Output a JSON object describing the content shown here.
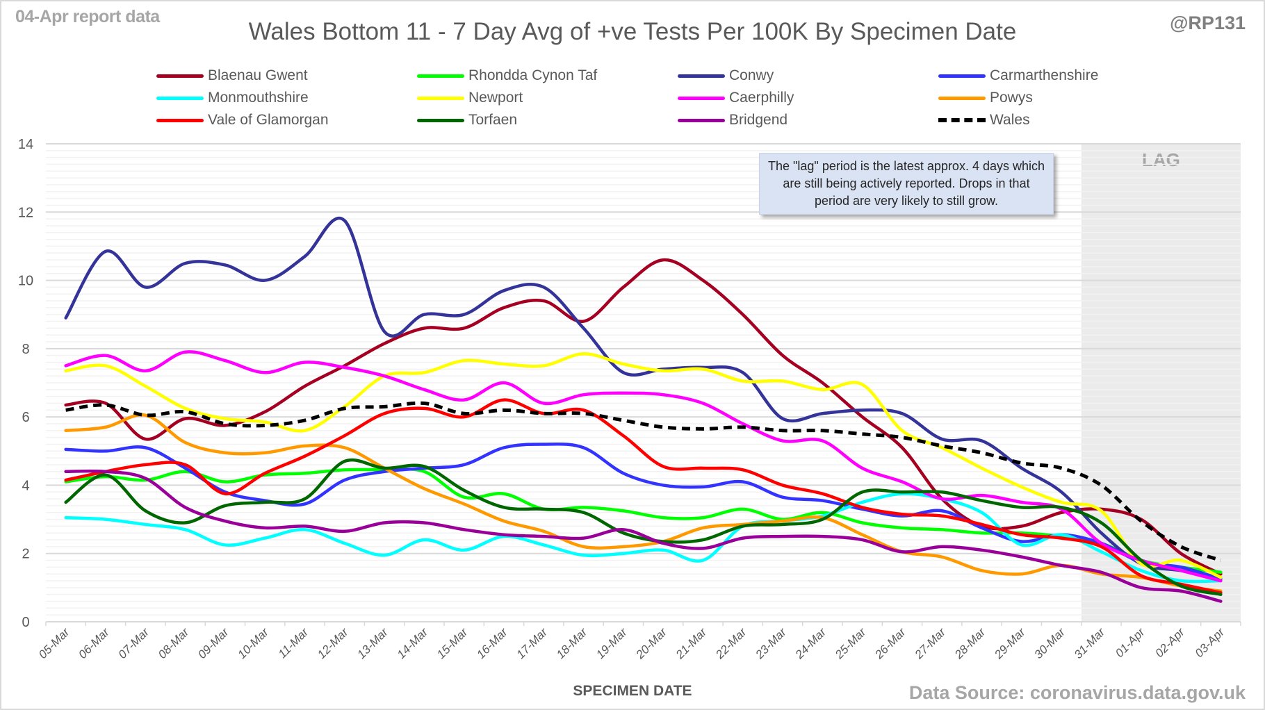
{
  "header": {
    "report_label": "04-Apr report data",
    "title": "Wales Bottom 11 - 7 Day Avg of +ve Tests Per 100K By Specimen Date",
    "handle": "@RP131"
  },
  "footer": {
    "x_axis_label": "SPECIMEN DATE",
    "data_source": "Data Source: coronavirus.data.gov.uk"
  },
  "annotation": {
    "note": "The \"lag\" period is the latest approx. 4 days which are still being actively reported. Drops in that period are very likely to still grow.",
    "lag_label": "LAG",
    "lag_start": "31-Mar",
    "lag_end": "03-Apr"
  },
  "chart_data": {
    "type": "line",
    "title": "Wales Bottom 11 - 7 Day Avg of +ve Tests Per 100K By Specimen Date",
    "xlabel": "SPECIMEN DATE",
    "ylabel": "",
    "ylim": [
      0,
      14
    ],
    "yticks": [
      0,
      2,
      4,
      6,
      8,
      10,
      12,
      14
    ],
    "grid": true,
    "minor_grid_step": 0.2,
    "legend_position": "top",
    "x": [
      "05-Mar",
      "06-Mar",
      "07-Mar",
      "08-Mar",
      "09-Mar",
      "10-Mar",
      "11-Mar",
      "12-Mar",
      "13-Mar",
      "14-Mar",
      "15-Mar",
      "16-Mar",
      "17-Mar",
      "18-Mar",
      "19-Mar",
      "20-Mar",
      "21-Mar",
      "22-Mar",
      "23-Mar",
      "24-Mar",
      "25-Mar",
      "26-Mar",
      "27-Mar",
      "28-Mar",
      "29-Mar",
      "30-Mar",
      "31-Mar",
      "01-Apr",
      "02-Apr",
      "03-Apr"
    ],
    "series": [
      {
        "name": "Blaenau Gwent",
        "color": "#a50021",
        "dashed": false,
        "values": [
          6.35,
          6.4,
          5.35,
          5.95,
          5.75,
          6.15,
          6.9,
          7.5,
          8.15,
          8.6,
          8.6,
          9.2,
          9.4,
          8.8,
          9.8,
          10.6,
          10.0,
          9.0,
          7.8,
          7.0,
          6.0,
          5.1,
          3.6,
          2.8,
          2.8,
          3.2,
          3.3,
          3.0,
          2.0,
          1.4
        ]
      },
      {
        "name": "Rhondda Cynon Taf",
        "color": "#00ff00",
        "dashed": false,
        "values": [
          4.1,
          4.25,
          4.15,
          4.4,
          4.1,
          4.3,
          4.35,
          4.45,
          4.45,
          4.4,
          3.65,
          3.75,
          3.3,
          3.35,
          3.25,
          3.05,
          3.05,
          3.3,
          3.0,
          3.2,
          2.9,
          2.75,
          2.7,
          2.6,
          2.6,
          2.5,
          2.3,
          1.8,
          1.6,
          1.45
        ]
      },
      {
        "name": "Conwy",
        "color": "#333399",
        "dashed": false,
        "values": [
          8.9,
          10.85,
          9.8,
          10.5,
          10.45,
          10.0,
          10.7,
          11.75,
          8.5,
          9.0,
          9.0,
          9.7,
          9.8,
          8.6,
          7.3,
          7.4,
          7.45,
          7.3,
          5.95,
          6.1,
          6.2,
          6.1,
          5.35,
          5.3,
          4.5,
          3.8,
          2.6,
          1.7,
          1.5,
          1.3
        ]
      },
      {
        "name": "Carmarthenshire",
        "color": "#3333ff",
        "dashed": false,
        "values": [
          5.05,
          5.0,
          5.1,
          4.5,
          3.8,
          3.55,
          3.45,
          4.15,
          4.4,
          4.5,
          4.6,
          5.1,
          5.2,
          5.1,
          4.35,
          4.0,
          3.95,
          4.1,
          3.65,
          3.55,
          3.3,
          3.1,
          3.25,
          2.75,
          2.35,
          2.55,
          2.3,
          1.75,
          1.6,
          1.25
        ]
      },
      {
        "name": "Monmouthshire",
        "color": "#00ffff",
        "dashed": false,
        "values": [
          3.05,
          3.0,
          2.85,
          2.7,
          2.25,
          2.45,
          2.7,
          2.3,
          1.95,
          2.4,
          2.1,
          2.5,
          2.25,
          1.95,
          2.0,
          2.1,
          1.8,
          2.8,
          2.95,
          3.1,
          3.5,
          3.75,
          3.6,
          3.2,
          2.25,
          2.55,
          2.05,
          1.5,
          1.2,
          1.2
        ]
      },
      {
        "name": "Newport",
        "color": "#ffff00",
        "dashed": false,
        "values": [
          7.35,
          7.5,
          6.9,
          6.25,
          5.95,
          5.85,
          5.6,
          6.3,
          7.2,
          7.3,
          7.65,
          7.55,
          7.5,
          7.85,
          7.55,
          7.35,
          7.4,
          7.05,
          7.05,
          6.8,
          6.95,
          5.6,
          5.1,
          4.5,
          3.95,
          3.5,
          3.25,
          1.7,
          1.8,
          1.3
        ]
      },
      {
        "name": "Caerphilly",
        "color": "#ff00ff",
        "dashed": false,
        "values": [
          7.5,
          7.8,
          7.35,
          7.9,
          7.65,
          7.3,
          7.6,
          7.45,
          7.2,
          6.8,
          6.5,
          7.0,
          6.4,
          6.65,
          6.7,
          6.65,
          6.4,
          5.8,
          5.3,
          5.3,
          4.5,
          4.1,
          3.6,
          3.7,
          3.5,
          3.3,
          2.3,
          1.8,
          1.5,
          1.2
        ]
      },
      {
        "name": "Powys",
        "color": "#ff9900",
        "dashed": false,
        "values": [
          5.6,
          5.7,
          6.05,
          5.25,
          4.95,
          4.95,
          5.15,
          5.1,
          4.5,
          3.9,
          3.45,
          2.95,
          2.65,
          2.2,
          2.2,
          2.35,
          2.75,
          2.85,
          2.95,
          3.05,
          2.55,
          2.05,
          1.9,
          1.5,
          1.4,
          1.65,
          1.4,
          1.3,
          1.05,
          0.9
        ]
      },
      {
        "name": "Vale of Glamorgan",
        "color": "#ff0000",
        "dashed": false,
        "values": [
          4.15,
          4.4,
          4.6,
          4.6,
          3.75,
          4.35,
          4.85,
          5.45,
          6.1,
          6.25,
          6.0,
          6.5,
          6.1,
          6.2,
          5.45,
          4.55,
          4.5,
          4.45,
          4.0,
          3.75,
          3.35,
          3.15,
          3.1,
          2.85,
          2.55,
          2.45,
          2.2,
          1.35,
          1.1,
          0.85
        ]
      },
      {
        "name": "Torfaen",
        "color": "#006600",
        "dashed": false,
        "values": [
          3.5,
          4.3,
          3.25,
          2.9,
          3.4,
          3.5,
          3.6,
          4.7,
          4.5,
          4.55,
          3.85,
          3.35,
          3.3,
          3.2,
          2.6,
          2.35,
          2.4,
          2.8,
          2.85,
          3.0,
          3.8,
          3.8,
          3.8,
          3.55,
          3.35,
          3.35,
          2.9,
          1.8,
          1.05,
          0.8
        ]
      },
      {
        "name": "Bridgend",
        "color": "#990099",
        "dashed": false,
        "values": [
          4.4,
          4.4,
          4.2,
          3.35,
          2.95,
          2.75,
          2.8,
          2.65,
          2.9,
          2.9,
          2.7,
          2.55,
          2.5,
          2.45,
          2.7,
          2.3,
          2.15,
          2.45,
          2.5,
          2.5,
          2.4,
          2.05,
          2.2,
          2.1,
          1.9,
          1.65,
          1.45,
          1.0,
          0.9,
          0.6
        ]
      },
      {
        "name": "Wales",
        "color": "#000000",
        "dashed": true,
        "values": [
          6.2,
          6.35,
          6.05,
          6.15,
          5.8,
          5.75,
          5.9,
          6.25,
          6.3,
          6.4,
          6.1,
          6.2,
          6.1,
          6.1,
          5.9,
          5.7,
          5.65,
          5.7,
          5.6,
          5.6,
          5.5,
          5.4,
          5.15,
          4.95,
          4.65,
          4.5,
          4.0,
          2.95,
          2.2,
          1.8
        ]
      }
    ]
  }
}
